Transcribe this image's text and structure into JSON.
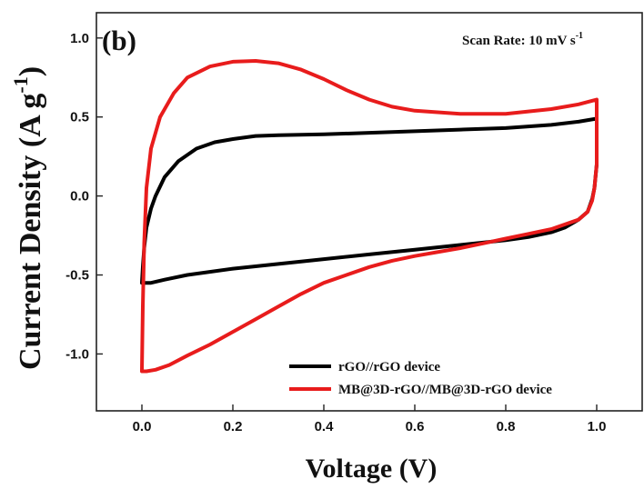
{
  "chart_data": {
    "type": "line",
    "panel_label": "(b)",
    "annotation": {
      "text": "Scan Rate: 10 mV s",
      "superscript": "-1"
    },
    "xlabel": "Voltage (V)",
    "ylabel": {
      "text": "Current Density (A g",
      "superscript": "-1",
      "suffix": ")"
    },
    "xlim": [
      -0.1,
      1.1
    ],
    "ylim": [
      -1.36,
      1.16
    ],
    "xticks": [
      {
        "value": 0.0,
        "label": "0.0"
      },
      {
        "value": 0.2,
        "label": "0.2"
      },
      {
        "value": 0.4,
        "label": "0.4"
      },
      {
        "value": 0.6,
        "label": "0.6"
      },
      {
        "value": 0.8,
        "label": "0.8"
      },
      {
        "value": 1.0,
        "label": "1.0"
      }
    ],
    "yticks": [
      {
        "value": -1.0,
        "label": "-1.0"
      },
      {
        "value": -0.5,
        "label": "-0.5"
      },
      {
        "value": 0.0,
        "label": "0.0"
      },
      {
        "value": 0.5,
        "label": "0.5"
      },
      {
        "value": 1.0,
        "label": "1.0"
      }
    ],
    "grid": false,
    "legend_position": "bottom-right",
    "series": [
      {
        "name": "rGO//rGO device",
        "color": "#000000",
        "points": [
          [
            0.0,
            -0.55
          ],
          [
            0.002,
            -0.45
          ],
          [
            0.005,
            -0.33
          ],
          [
            0.01,
            -0.2
          ],
          [
            0.02,
            -0.08
          ],
          [
            0.03,
            0.0
          ],
          [
            0.05,
            0.12
          ],
          [
            0.08,
            0.22
          ],
          [
            0.12,
            0.3
          ],
          [
            0.16,
            0.34
          ],
          [
            0.2,
            0.36
          ],
          [
            0.25,
            0.38
          ],
          [
            0.3,
            0.385
          ],
          [
            0.4,
            0.39
          ],
          [
            0.5,
            0.4
          ],
          [
            0.6,
            0.41
          ],
          [
            0.7,
            0.42
          ],
          [
            0.8,
            0.43
          ],
          [
            0.9,
            0.45
          ],
          [
            0.96,
            0.47
          ],
          [
            1.0,
            0.49
          ],
          [
            1.0,
            0.35
          ],
          [
            1.0,
            0.2
          ],
          [
            0.995,
            0.05
          ],
          [
            0.99,
            -0.02
          ],
          [
            0.98,
            -0.1
          ],
          [
            0.96,
            -0.15
          ],
          [
            0.93,
            -0.2
          ],
          [
            0.9,
            -0.23
          ],
          [
            0.85,
            -0.26
          ],
          [
            0.8,
            -0.28
          ],
          [
            0.7,
            -0.31
          ],
          [
            0.6,
            -0.34
          ],
          [
            0.5,
            -0.37
          ],
          [
            0.4,
            -0.4
          ],
          [
            0.3,
            -0.43
          ],
          [
            0.2,
            -0.46
          ],
          [
            0.1,
            -0.5
          ],
          [
            0.05,
            -0.53
          ],
          [
            0.02,
            -0.55
          ],
          [
            0.0,
            -0.55
          ]
        ]
      },
      {
        "name": "MB@3D-rGO//MB@3D-rGO device",
        "color": "#e81c1c",
        "points": [
          [
            0.0,
            -1.11
          ],
          [
            0.002,
            -0.7
          ],
          [
            0.005,
            -0.3
          ],
          [
            0.01,
            0.05
          ],
          [
            0.02,
            0.3
          ],
          [
            0.04,
            0.5
          ],
          [
            0.07,
            0.65
          ],
          [
            0.1,
            0.75
          ],
          [
            0.15,
            0.82
          ],
          [
            0.2,
            0.85
          ],
          [
            0.25,
            0.855
          ],
          [
            0.3,
            0.84
          ],
          [
            0.35,
            0.8
          ],
          [
            0.4,
            0.74
          ],
          [
            0.45,
            0.67
          ],
          [
            0.5,
            0.61
          ],
          [
            0.55,
            0.565
          ],
          [
            0.6,
            0.54
          ],
          [
            0.7,
            0.52
          ],
          [
            0.8,
            0.52
          ],
          [
            0.9,
            0.55
          ],
          [
            0.96,
            0.58
          ],
          [
            1.0,
            0.61
          ],
          [
            1.0,
            0.4
          ],
          [
            1.0,
            0.2
          ],
          [
            0.995,
            0.05
          ],
          [
            0.99,
            -0.03
          ],
          [
            0.98,
            -0.1
          ],
          [
            0.96,
            -0.15
          ],
          [
            0.93,
            -0.18
          ],
          [
            0.9,
            -0.21
          ],
          [
            0.85,
            -0.24
          ],
          [
            0.8,
            -0.27
          ],
          [
            0.75,
            -0.3
          ],
          [
            0.7,
            -0.33
          ],
          [
            0.6,
            -0.38
          ],
          [
            0.55,
            -0.41
          ],
          [
            0.5,
            -0.45
          ],
          [
            0.45,
            -0.5
          ],
          [
            0.4,
            -0.55
          ],
          [
            0.35,
            -0.62
          ],
          [
            0.3,
            -0.7
          ],
          [
            0.25,
            -0.78
          ],
          [
            0.2,
            -0.86
          ],
          [
            0.15,
            -0.94
          ],
          [
            0.1,
            -1.01
          ],
          [
            0.06,
            -1.07
          ],
          [
            0.03,
            -1.1
          ],
          [
            0.01,
            -1.11
          ],
          [
            0.0,
            -1.11
          ]
        ]
      }
    ]
  }
}
